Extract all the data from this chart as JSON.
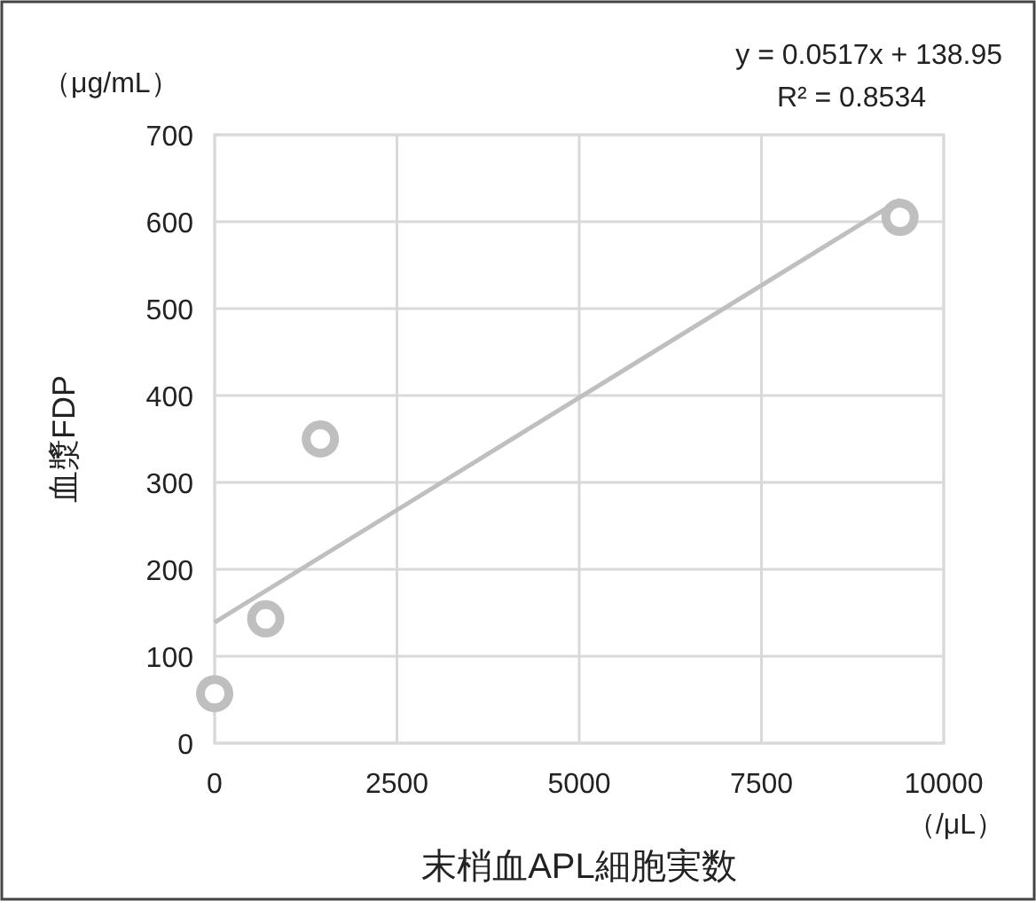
{
  "chart_data": {
    "type": "scatter",
    "xlabel": "末梢血APL細胞実数",
    "ylabel": "血漿FDP",
    "annotations": [
      "y = 0.0517x + 138.95",
      "R² = 0.8534",
      "（μg/mL）",
      "（/μL）"
    ],
    "xlim": [
      0,
      10000
    ],
    "xticks": [
      0,
      2500,
      5000,
      7500,
      10000
    ],
    "ylim": [
      0,
      700
    ],
    "yticks": [
      0,
      100,
      200,
      300,
      400,
      500,
      600,
      700
    ],
    "grid": true,
    "series": [
      {
        "type": "line",
        "marker": "none",
        "color": "#bfbfbf",
        "x": [
          0,
          9400
        ],
        "values": [
          139,
          625
        ]
      },
      {
        "marker": "circle",
        "color": "#bfbfbf",
        "x": [
          0,
          700,
          1450,
          9400
        ],
        "values": [
          57,
          143,
          350,
          605
        ]
      }
    ]
  }
}
